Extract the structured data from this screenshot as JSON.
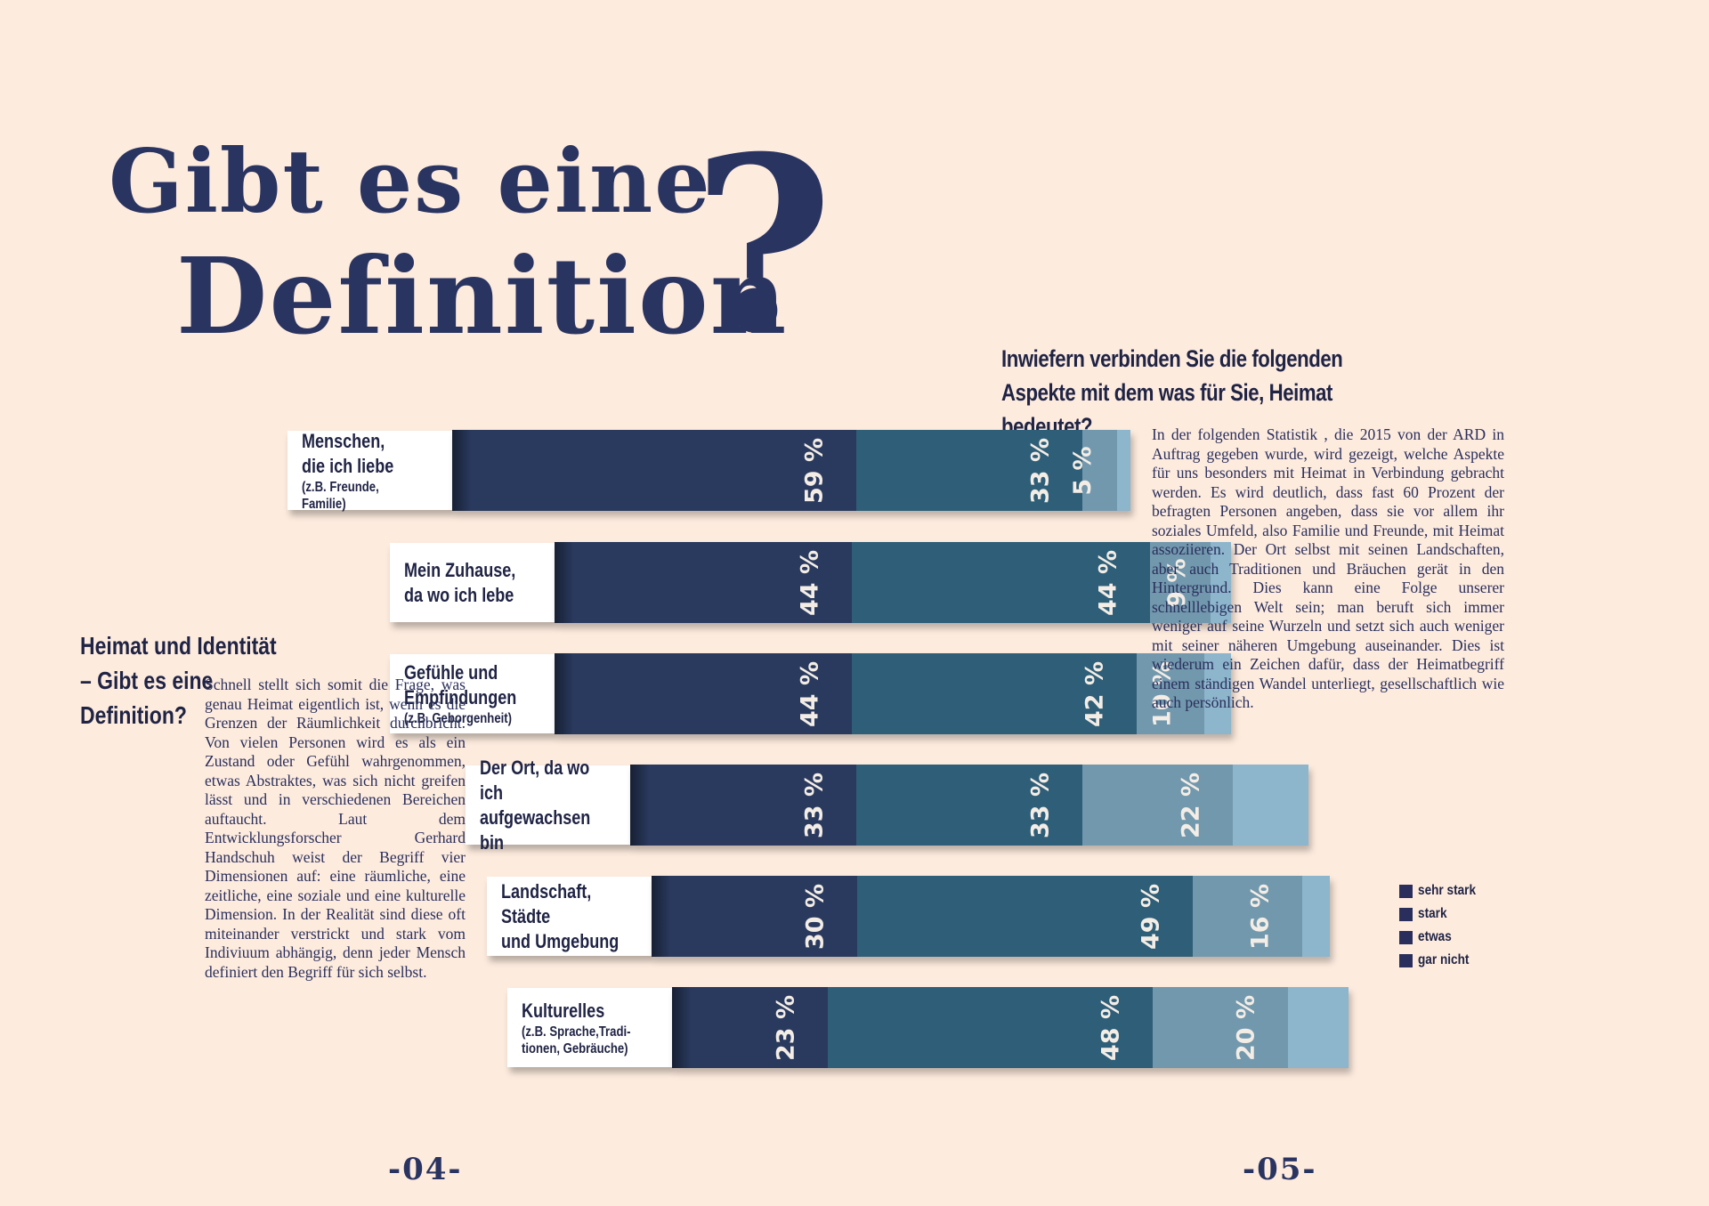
{
  "title": {
    "line1": "Gibt es eine",
    "line2": "Definition",
    "qmark": "?"
  },
  "chart_question": "Inwiefern verbinden Sie die folgenden Aspekte mit dem was für Sie, Heimat bedeutet?",
  "side_heading": "Heimat und Identität – Gibt es eine Definition?",
  "left_text": "Schnell stellt sich somit die Frage, was genau Heimat eigentlich ist, wenn es die Grenzen der Räumlichkeit durchbricht. Von vielen Personen wird es als ein Zustand oder Gefühl wahrgenommen, etwas Abstraktes, was sich nicht greifen lässt und in verschiedenen Bereichen auftaucht. Laut dem Entwicklungsforscher Gerhard Handschuh weist der Begriff vier Dimensionen auf: eine räumliche, eine zeitliche, eine soziale und eine kulturelle Dimension. In der Realität sind diese oft miteinander verstrickt und stark vom Indiviuum abhängig, denn jeder Mensch definiert den Begriff für sich selbst.",
  "right_text": "In der folgenden Statistik , die 2015 von der ARD in Auftrag gegeben wurde, wird gezeigt, welche Aspekte für uns besonders mit Heimat in Verbindung gebracht werden. Es wird deutlich, dass fast 60 Prozent der befragten Personen angeben, dass sie vor allem ihr soziales Umfeld, also Familie und Freunde, mit Heimat assoziieren. Der Ort selbst mit seinen Landschaften, aber auch Traditionen und Bräuchen gerät in den Hintergrund. Dies kann eine Folge unserer schnelllebigen Welt sein; man beruft sich immer weniger auf seine Wurzeln und setzt sich auch weniger mit seiner näheren Umgebung auseinander. Dies ist wiederum ein Zeichen dafür, dass der Heimatbegriff einem ständigen Wandel unterliegt, gesellschaftlich wie auch persönlich.",
  "page_numbers": {
    "left": "-04-",
    "right": "-05-"
  },
  "colors": {
    "sehr_stark": "#2a3a5e",
    "stark": "#2e5e78",
    "etwas": "#7298ad",
    "gar_nicht": "#8db5cc",
    "background": "#fdebde",
    "title": "#2a3461"
  },
  "chart_data": {
    "type": "bar",
    "orientation": "horizontal-stacked",
    "title": "Inwiefern verbinden Sie die folgenden Aspekte mit dem was für Sie, Heimat bedeutet?",
    "categories": [
      {
        "main": "Menschen,\ndie ich liebe",
        "sub": "(z.B. Freunde, Familie)"
      },
      {
        "main": "Mein Zuhause,\nda wo ich lebe",
        "sub": ""
      },
      {
        "main": "Gefühle und\nEmpfindungen",
        "sub": "(z.B. Geborgenheit)"
      },
      {
        "main": "Der Ort, da wo ich\naufgewachsen bin",
        "sub": ""
      },
      {
        "main": "Landschaft, Städte\nund Umgebung",
        "sub": ""
      },
      {
        "main": "Kulturelles",
        "sub": "(z.B. Sprache,Tradi-\ntionen, Gebräuche)"
      }
    ],
    "series": [
      {
        "name": "sehr stark",
        "values": [
          59,
          44,
          44,
          33,
          30,
          23
        ]
      },
      {
        "name": "stark",
        "values": [
          33,
          44,
          42,
          33,
          49,
          48
        ]
      },
      {
        "name": "etwas",
        "values": [
          5,
          9,
          10,
          22,
          16,
          20
        ]
      },
      {
        "name": "gar nicht",
        "values": [
          2,
          3,
          4,
          11,
          4,
          9
        ]
      }
    ],
    "unit_suffix": " %",
    "legend_position": "right"
  }
}
